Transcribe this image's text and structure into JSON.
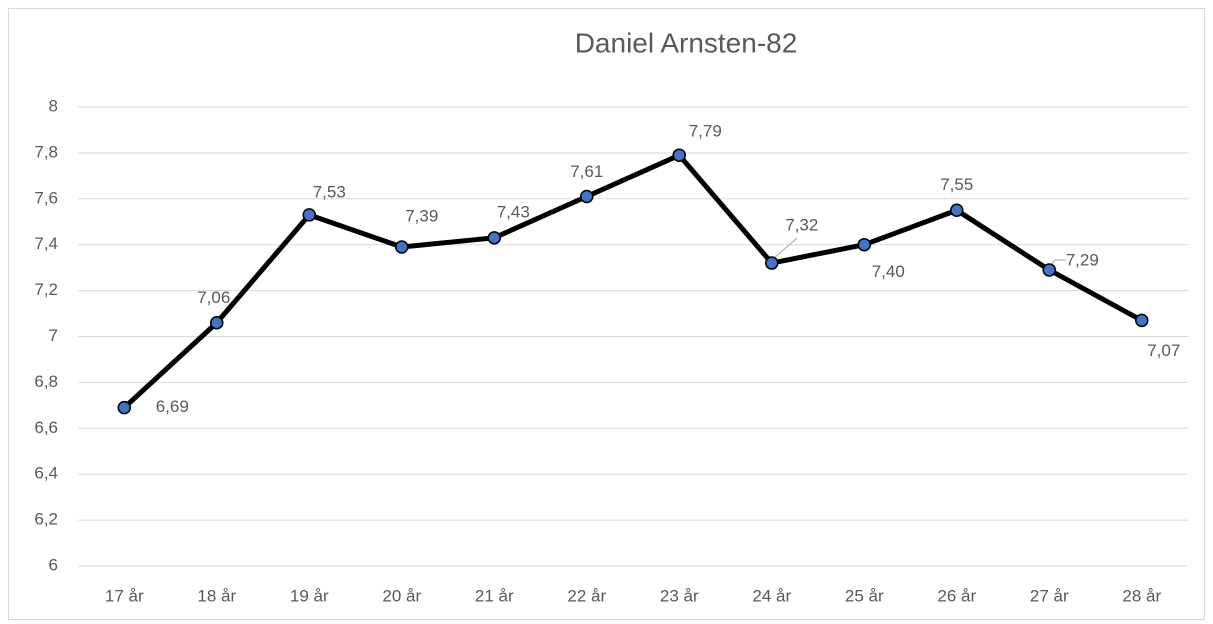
{
  "chart_data": {
    "type": "line",
    "title": "Daniel Arnsten-82",
    "categories": [
      "17 år",
      "18 år",
      "19 år",
      "20 år",
      "21 år",
      "22 år",
      "23 år",
      "24 år",
      "25 år",
      "26 år",
      "27 år",
      "28 år"
    ],
    "series": [
      {
        "color": "#000000",
        "marker_color": "#4472c4",
        "values": [
          6.69,
          7.06,
          7.53,
          7.39,
          7.43,
          7.61,
          7.79,
          7.32,
          7.4,
          7.55,
          7.29,
          7.07
        ],
        "value_labels": [
          "6,69",
          "7,06",
          "7,53",
          "7,39",
          "7,43",
          "7,61",
          "7,79",
          "7,32",
          "7,40",
          "7,55",
          "7,29",
          "7,07"
        ]
      }
    ],
    "ylim": [
      6,
      8
    ],
    "yticks": [
      6,
      {
        "value": 6.2,
        "label": "6,2"
      },
      {
        "value": 6.4,
        "label": "6,4"
      },
      {
        "value": 6.6,
        "label": "6,6"
      },
      {
        "value": 6.8,
        "label": "6,8"
      },
      7,
      {
        "value": 7.2,
        "label": "7,2"
      },
      {
        "value": 7.4,
        "label": "7,4"
      },
      {
        "value": 7.6,
        "label": "7,6"
      },
      {
        "value": 7.8,
        "label": "7,8"
      },
      8
    ],
    "grid": true
  }
}
